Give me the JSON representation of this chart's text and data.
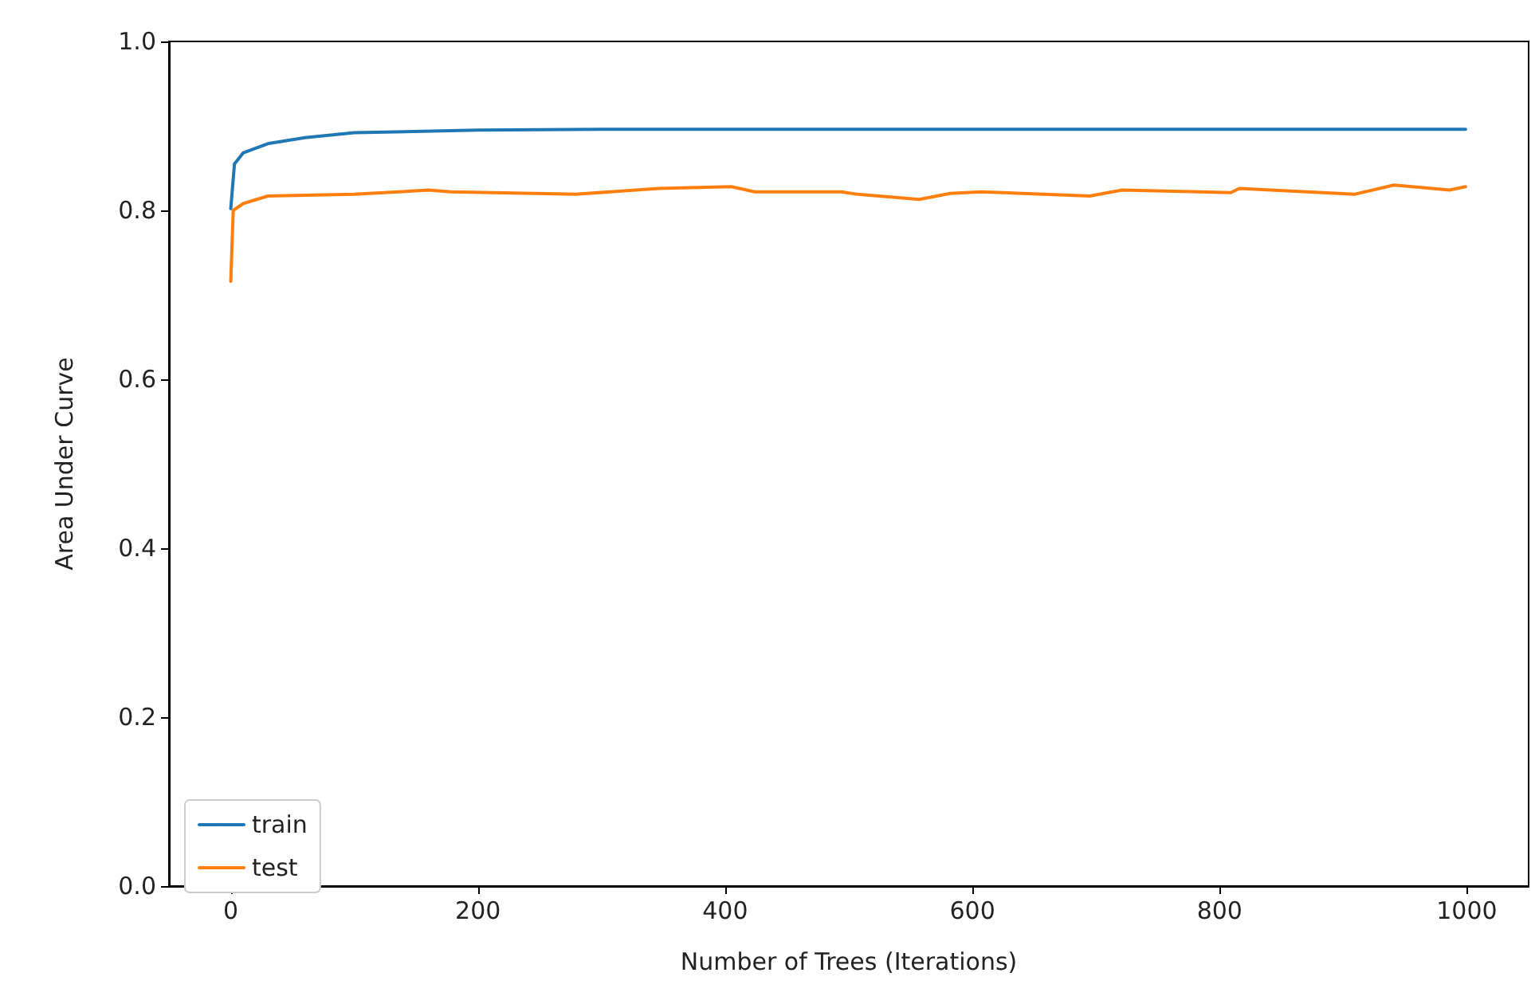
{
  "chart_data": {
    "type": "line",
    "xlabel": "Number of Trees (Iterations)",
    "ylabel": "Area Under Curve",
    "xlim": [
      -50,
      1050
    ],
    "xticks": [
      0,
      200,
      400,
      600,
      800,
      1000
    ],
    "ylim": [
      0,
      1
    ],
    "yticks": [
      {
        "value": 0,
        "label": "0.0"
      },
      0.2,
      0.4,
      0.6,
      0.8,
      {
        "value": 1,
        "label": "1.0"
      }
    ],
    "grid": false,
    "legend": "bottom left",
    "marker": "none",
    "line_style": "solid",
    "series": [
      {
        "name": "train",
        "color": "#1f77b4",
        "x": [
          0,
          3,
          10,
          30,
          60,
          100,
          200,
          300,
          500,
          700,
          999
        ],
        "values": [
          0.802,
          0.855,
          0.868,
          0.879,
          0.886,
          0.892,
          0.895,
          0.896,
          0.896,
          0.896,
          0.896
        ]
      },
      {
        "name": "test",
        "color": "#ff7f0e",
        "x": [
          0,
          2,
          10,
          30,
          100,
          160,
          178,
          279,
          346,
          405,
          424,
          494,
          507,
          557,
          582,
          607,
          695,
          721,
          809,
          816,
          909,
          941,
          986,
          999
        ],
        "values": [
          0.716,
          0.8,
          0.808,
          0.817,
          0.819,
          0.824,
          0.822,
          0.819,
          0.826,
          0.828,
          0.822,
          0.822,
          0.819,
          0.813,
          0.82,
          0.822,
          0.817,
          0.824,
          0.821,
          0.826,
          0.819,
          0.83,
          0.824,
          0.828
        ]
      }
    ]
  }
}
